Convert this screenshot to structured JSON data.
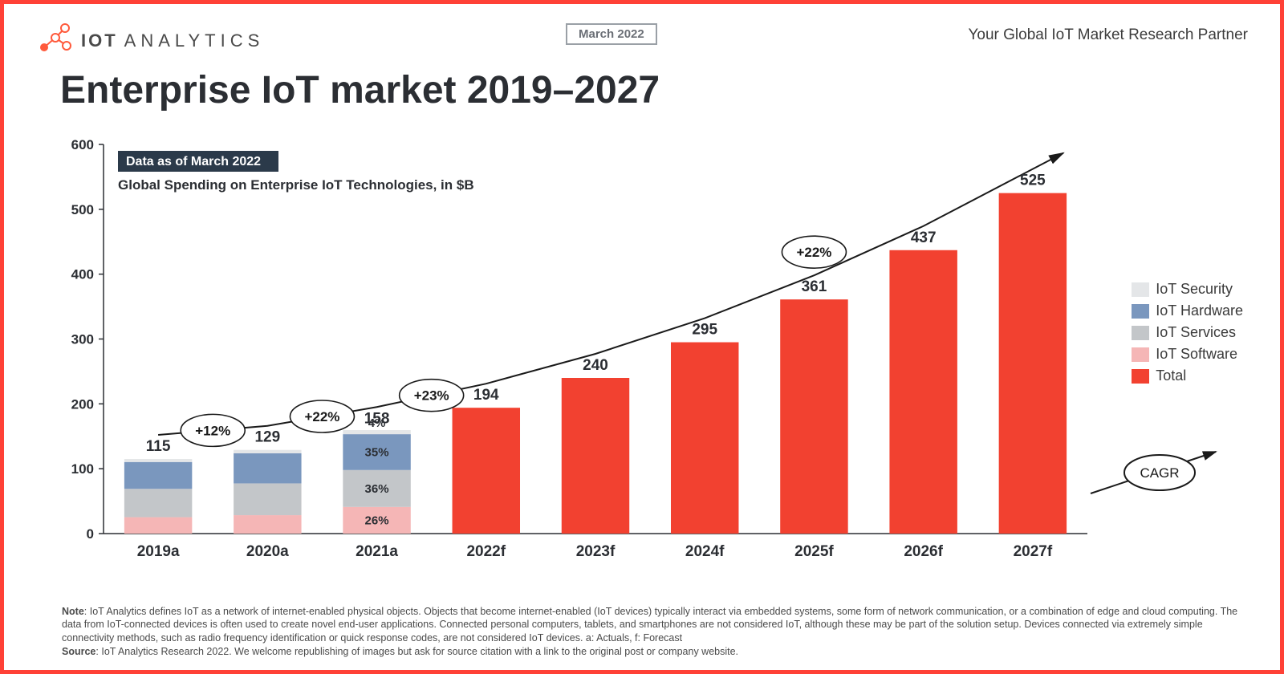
{
  "header": {
    "logo_text_bold": "IOT",
    "logo_text_light": "ANALYTICS",
    "date_badge": "March 2022",
    "tagline": "Your Global IoT Market Research Partner"
  },
  "title": "Enterprise IoT market 2019–2027",
  "chart": {
    "type": "stacked-bar-with-growth-line",
    "data_badge": "Data as of March 2022",
    "subtitle": "Global Spending on Enterprise IoT Technologies, in $B",
    "ylim": [
      0,
      600
    ],
    "ytick_step": 100,
    "yticks": [
      0,
      100,
      200,
      300,
      400,
      500,
      600
    ],
    "categories": [
      "2019a",
      "2020a",
      "2021a",
      "2022f",
      "2023f",
      "2024f",
      "2025f",
      "2026f",
      "2027f"
    ],
    "totals": [
      115,
      129,
      158,
      194,
      240,
      295,
      361,
      437,
      525
    ],
    "stacked_indices": [
      0,
      1,
      2
    ],
    "segments_order": [
      "IoT Software",
      "IoT Services",
      "IoT Hardware",
      "IoT Security"
    ],
    "segment_colors": {
      "IoT Software": "#f5b6b6",
      "IoT Services": "#c3c6c9",
      "IoT Hardware": "#7a97be",
      "IoT Security": "#e4e6e8",
      "Total": "#f24130"
    },
    "segment_shares_2021": {
      "IoT Software": 26,
      "IoT Services": 36,
      "IoT Hardware": 35,
      "IoT Security": 4
    },
    "segment_shares_default": {
      "IoT Software": 22,
      "IoT Services": 38,
      "IoT Hardware": 36,
      "IoT Security": 4
    },
    "growth_labels": [
      {
        "between": [
          0,
          1
        ],
        "text": "+12%"
      },
      {
        "between": [
          1,
          2
        ],
        "text": "+22%"
      },
      {
        "between": [
          2,
          3
        ],
        "text": "+23%"
      },
      {
        "between": [
          5,
          7
        ],
        "text": "+22%",
        "shift_up": 25
      }
    ],
    "bar_width_ratio": 0.62,
    "axis_color": "#2b2e33",
    "grid_color": "#ffffff",
    "background_color": "#ffffff",
    "title_fontsize": 48,
    "label_fontsize": 17
  },
  "legend": {
    "items": [
      {
        "label": "IoT Security",
        "color": "#e4e6e8"
      },
      {
        "label": "IoT Hardware",
        "color": "#7a97be"
      },
      {
        "label": "IoT Services",
        "color": "#c3c6c9"
      },
      {
        "label": "IoT Software",
        "color": "#f5b6b6"
      },
      {
        "label": "Total",
        "color": "#f24130"
      }
    ]
  },
  "cagr_label": "CAGR",
  "footer": {
    "note_label": "Note",
    "note_text": "IoT Analytics defines IoT as a network of internet-enabled physical objects. Objects that become internet-enabled (IoT devices) typically interact via embedded systems, some form of network communication, or a combination of edge and cloud computing. The data from IoT-connected devices is often used to create novel end-user applications. Connected personal computers, tablets, and smartphones are not considered IoT, although these may be part of the solution setup. Devices connected via extremely simple connectivity methods, such as radio frequency identification or quick response codes, are not considered IoT devices. a: Actuals, f: Forecast",
    "source_label": "Source",
    "source_text": "IoT Analytics Research 2022. We welcome republishing of images but ask for source citation with a link to the original post or company website."
  }
}
